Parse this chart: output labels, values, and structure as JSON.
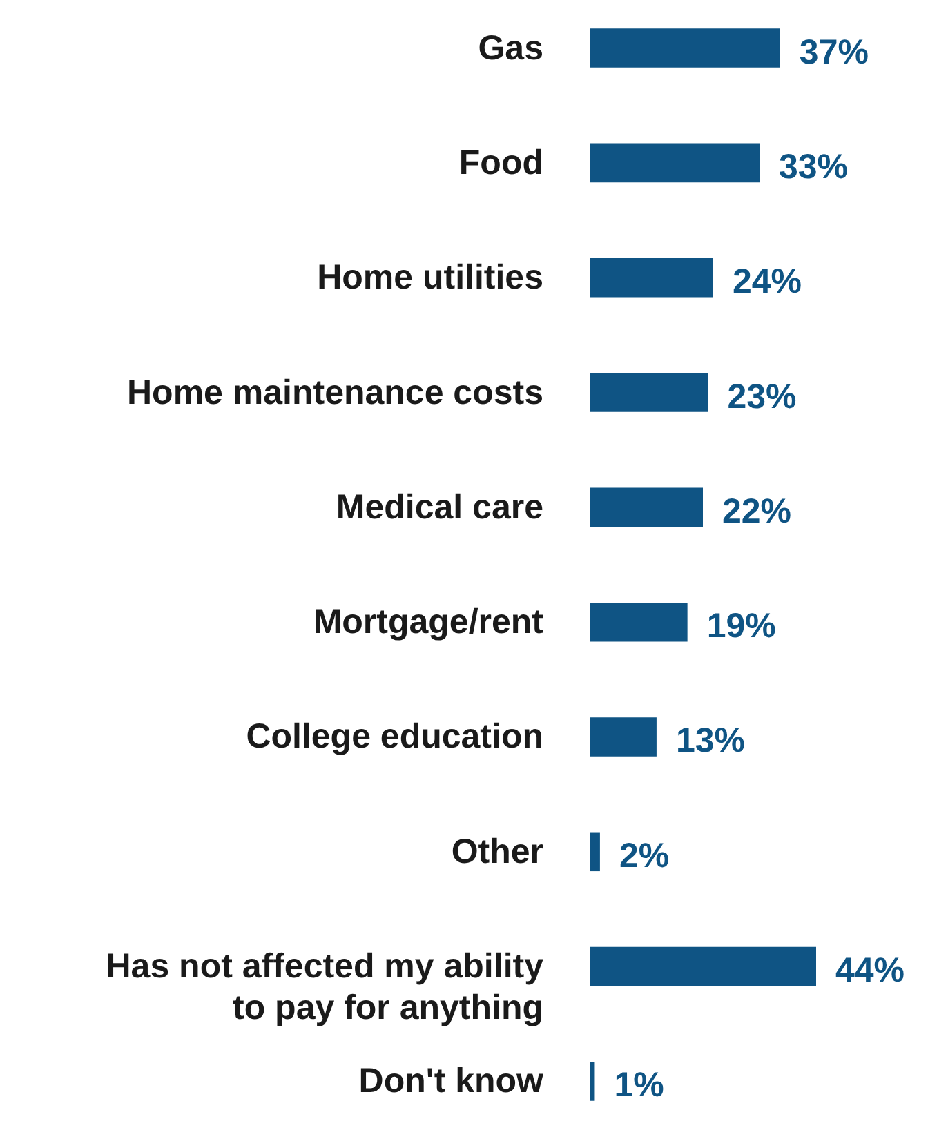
{
  "chart_data": {
    "type": "bar",
    "orientation": "horizontal",
    "categories": [
      "Gas",
      "Food",
      "Home utilities",
      "Home maintenance costs",
      "Medical care",
      "Mortgage/rent",
      "College education",
      "Other",
      "Has not affected my ability\nto pay for anything",
      "Don't know"
    ],
    "values": [
      37,
      33,
      24,
      23,
      22,
      19,
      13,
      2,
      44,
      1
    ],
    "value_labels": [
      "37%",
      "33%",
      "24%",
      "23%",
      "22%",
      "19%",
      "13%",
      "2%",
      "44%",
      "1%"
    ],
    "color": "#0f5484"
  }
}
